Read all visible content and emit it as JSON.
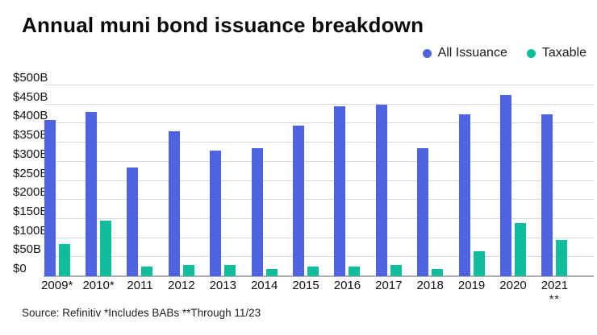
{
  "title": "Annual muni bond issuance breakdown",
  "legend": {
    "items": [
      {
        "label": "All Issuance",
        "color": "#4f63e0"
      },
      {
        "label": "Taxable",
        "color": "#0ebd9c"
      }
    ]
  },
  "source": "Source: Refinitiv *Includes BABs **Through 11/23",
  "colors": {
    "all_issuance": "#4f63e0",
    "taxable": "#0ebd9c",
    "gridline": "#d9d9d9",
    "baseline": "#b0b0b0"
  },
  "chart_data": {
    "type": "bar",
    "title": "Annual muni bond issuance breakdown",
    "xlabel": "",
    "ylabel": "",
    "ylim": [
      0,
      500
    ],
    "grid": "horizontal",
    "legend_position": "top-right",
    "categories": [
      "2009*",
      "2010*",
      "2011",
      "2012",
      "2013",
      "2014",
      "2015",
      "2016",
      "2017",
      "2018",
      "2019",
      "2020",
      "2021"
    ],
    "category_sublabels": [
      "",
      "",
      "",
      "",
      "",
      "",
      "",
      "",
      "",
      "",
      "",
      "",
      "**"
    ],
    "series": [
      {
        "name": "All Issuance",
        "color": "#4f63e0",
        "values": [
          410,
          430,
          285,
          380,
          330,
          335,
          395,
          445,
          450,
          335,
          425,
          475,
          425
        ]
      },
      {
        "name": "Taxable",
        "color": "#0ebd9c",
        "values": [
          85,
          145,
          25,
          30,
          30,
          20,
          25,
          25,
          30,
          20,
          65,
          140,
          95
        ]
      }
    ],
    "y_ticks": [
      {
        "label": "$0",
        "value": 0
      },
      {
        "label": "$50B",
        "value": 50
      },
      {
        "label": "$100B",
        "value": 100
      },
      {
        "label": "$150B",
        "value": 150
      },
      {
        "label": "$200B",
        "value": 200
      },
      {
        "label": "$250B",
        "value": 250
      },
      {
        "label": "$300B",
        "value": 300
      },
      {
        "label": "$350B",
        "value": 350
      },
      {
        "label": "$400B",
        "value": 400
      },
      {
        "label": "$450B",
        "value": 450
      },
      {
        "label": "$500B",
        "value": 500
      }
    ]
  }
}
